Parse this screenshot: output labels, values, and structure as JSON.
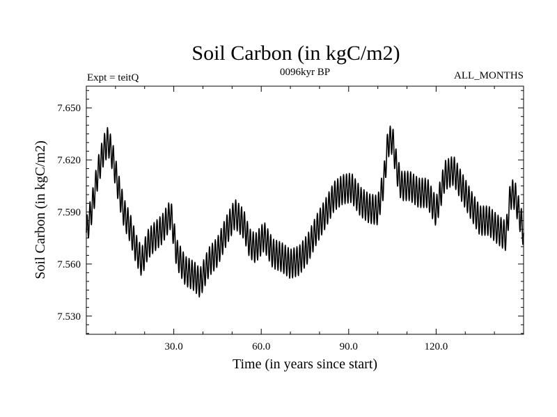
{
  "chart_data": {
    "type": "line",
    "title": "Soil Carbon (in kgC/m2)",
    "subtitle": "0096kyr BP",
    "left_label": "Expt = teitQ",
    "right_label": "ALL_MONTHS",
    "xlabel": "Time (in years since start)",
    "ylabel": "Soil Carbon (in kgC/m2)",
    "xlim": [
      0,
      150
    ],
    "ylim": [
      7.5195,
      7.6625
    ],
    "x_ticks": [
      30,
      60,
      90,
      120
    ],
    "x_tick_labels": [
      "30.0",
      "60.0",
      "90.0",
      "120.0"
    ],
    "y_ticks": [
      7.53,
      7.56,
      7.59,
      7.62,
      7.65
    ],
    "y_tick_labels": [
      "7.530",
      "7.560",
      "7.590",
      "7.620",
      "7.650"
    ],
    "grid": false,
    "series": [
      {
        "color": "#000000",
        "seasonal_amplitude": 0.0085,
        "seasonal_cycle_years": 1,
        "x": [
          0,
          2,
          4,
          6,
          7.5,
          9,
          11,
          13,
          15,
          17,
          19,
          21,
          23,
          26,
          29,
          31,
          34,
          37,
          39,
          42,
          45,
          48,
          51,
          54,
          56,
          58,
          61,
          64,
          67,
          70,
          73,
          76,
          79,
          82,
          85,
          88,
          91,
          94,
          97,
          100,
          102,
          103.5,
          105,
          106.5,
          108,
          111,
          114,
          117,
          120,
          123,
          126,
          128,
          132,
          135,
          138,
          141,
          144,
          145.5,
          147,
          150
        ],
        "y": [
          7.578,
          7.593,
          7.613,
          7.626,
          7.631,
          7.622,
          7.604,
          7.589,
          7.581,
          7.569,
          7.561,
          7.571,
          7.575,
          7.58,
          7.589,
          7.566,
          7.556,
          7.553,
          7.549,
          7.561,
          7.567,
          7.579,
          7.589,
          7.583,
          7.572,
          7.569,
          7.576,
          7.566,
          7.564,
          7.56,
          7.562,
          7.569,
          7.58,
          7.589,
          7.599,
          7.603,
          7.604,
          7.596,
          7.592,
          7.591,
          7.607,
          7.63,
          7.632,
          7.615,
          7.605,
          7.605,
          7.601,
          7.601,
          7.59,
          7.611,
          7.614,
          7.607,
          7.594,
          7.585,
          7.585,
          7.58,
          7.576,
          7.6,
          7.6,
          7.578
        ]
      }
    ]
  }
}
